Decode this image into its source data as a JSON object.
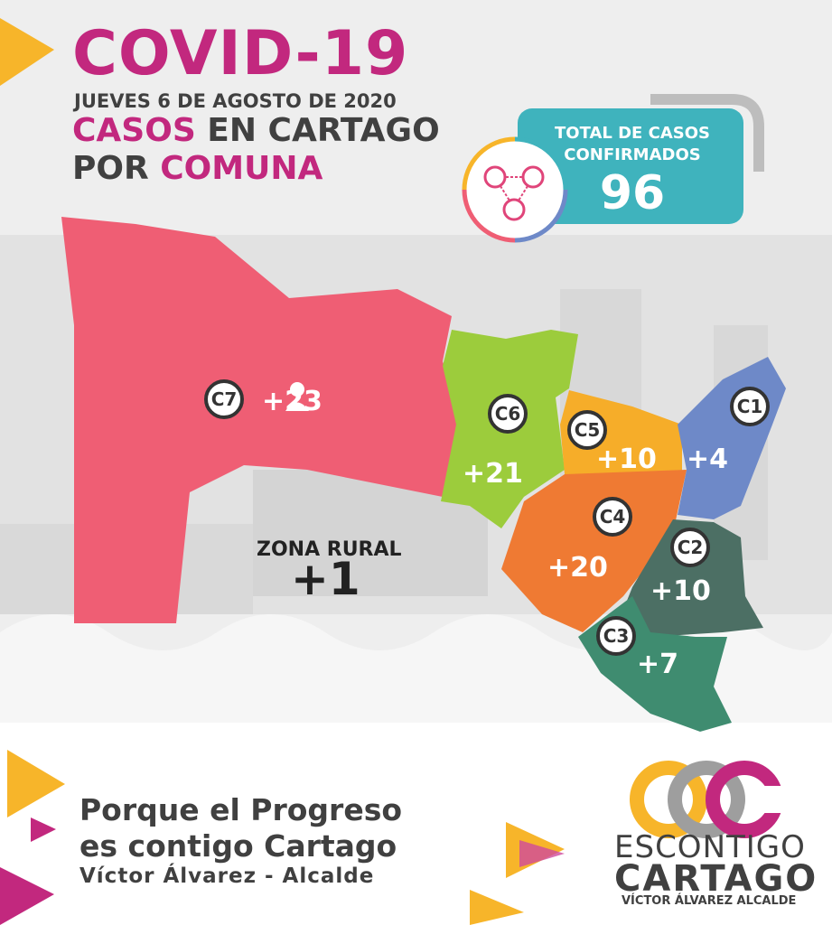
{
  "header": {
    "title": "COVID-19",
    "date": "JUEVES 6 DE AGOSTO DE 2020",
    "subtitle_line1_a": "CASOS",
    "subtitle_line1_b": " EN CARTAGO",
    "subtitle_line2_a": "POR ",
    "subtitle_line2_b": "COMUNA"
  },
  "total": {
    "label": "TOTAL DE CASOS CONFIRMADOS",
    "value": "96"
  },
  "comunas": [
    {
      "id": "C7",
      "cases": "+23",
      "color": "#ef5e74"
    },
    {
      "id": "C6",
      "cases": "+21",
      "color": "#9ccc3c"
    },
    {
      "id": "C5",
      "cases": "+10",
      "color": "#f6ad29"
    },
    {
      "id": "C1",
      "cases": "+4",
      "color": "#6e89c8"
    },
    {
      "id": "C4",
      "cases": "+20",
      "color": "#ef7a33"
    },
    {
      "id": "C2",
      "cases": "+10",
      "color": "#4c6f64"
    },
    {
      "id": "C3",
      "cases": "+7",
      "color": "#3f8c70"
    }
  ],
  "zona_rural": {
    "label": "ZONA RURAL",
    "cases": "+1"
  },
  "footer": {
    "slogan_line1": "Porque el Progreso",
    "slogan_line2": "es contigo Cartago",
    "signature": "Víctor Álvarez - Alcalde"
  },
  "logo": {
    "line1": "ESCONTIGO",
    "line2": "CARTAGO",
    "line3": "VÍCTOR ÁLVAREZ ALCALDE"
  },
  "colors": {
    "accent_pink": "#c2287e",
    "accent_yellow": "#f7b52a",
    "teal": "#3fb3bd",
    "text_dark": "#404040"
  }
}
